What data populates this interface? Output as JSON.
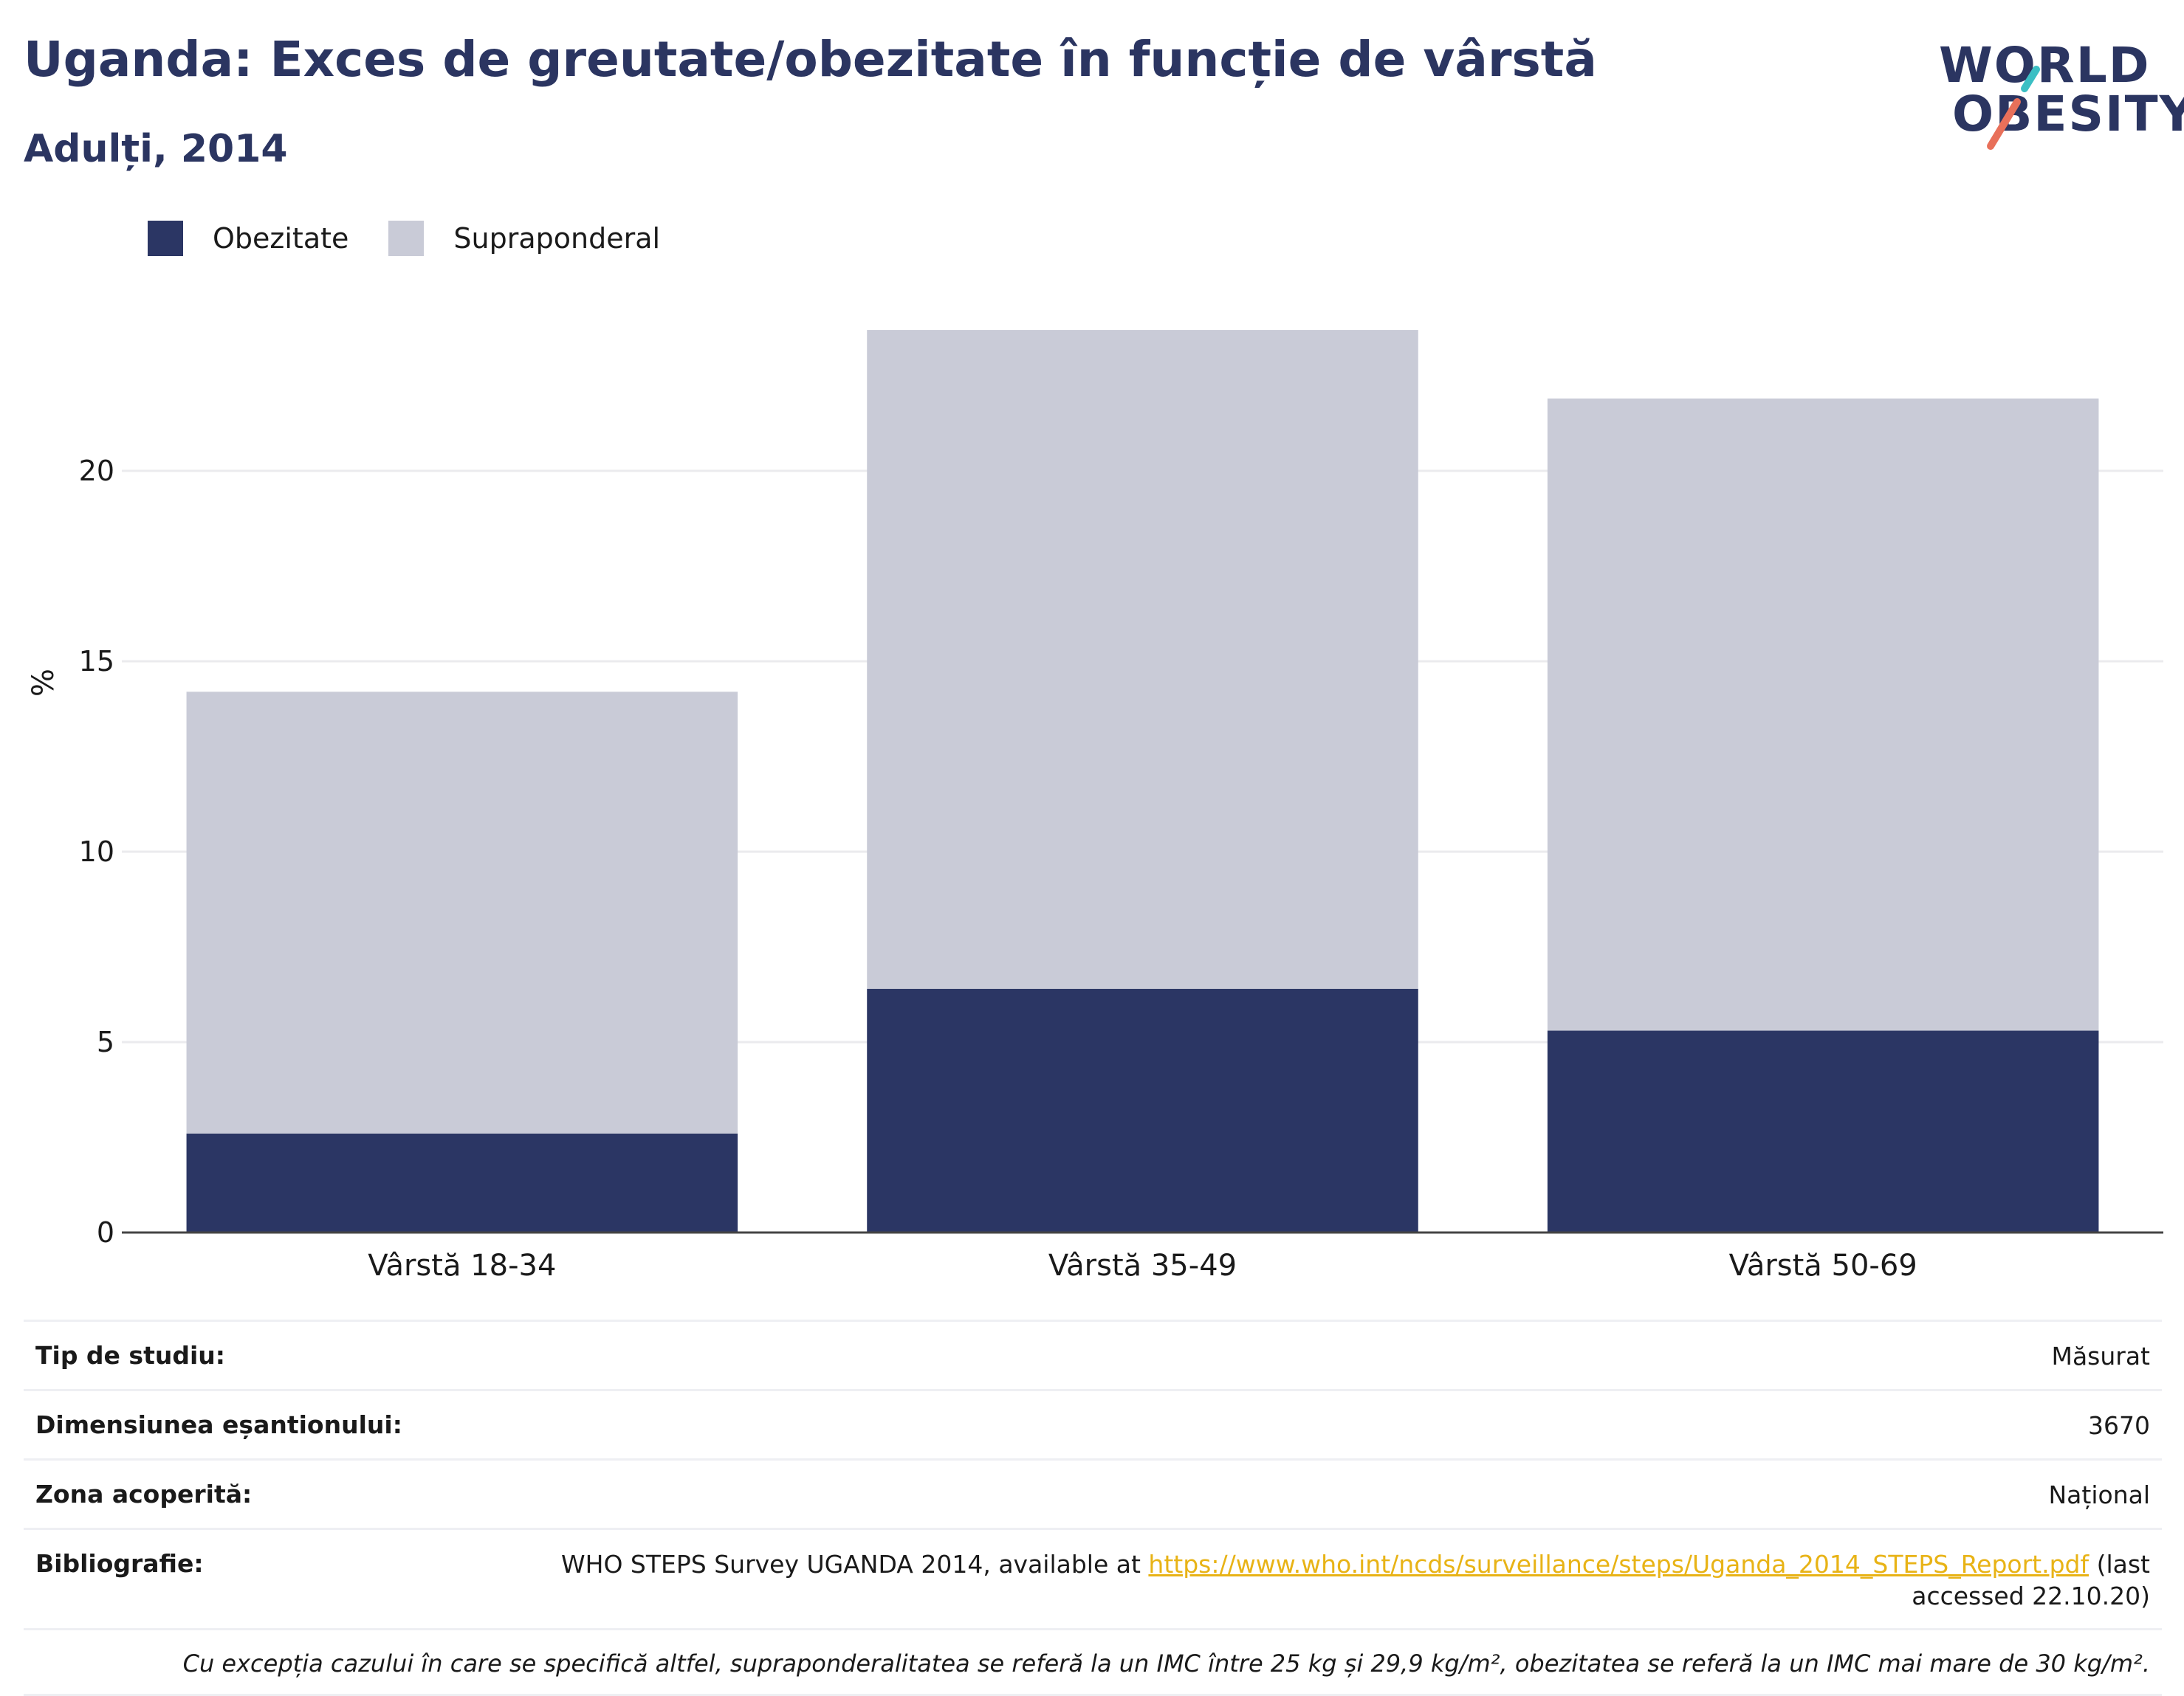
{
  "header": {
    "title": "Uganda: Exces de greutate/obezitate în funcție de vârstă",
    "subtitle": "Adulți, 2014"
  },
  "logo": {
    "line1": "WORLD",
    "line2": "OBESITY",
    "colors": {
      "text": "#2b3561",
      "teal": "#3bbfc4",
      "coral": "#e8705a"
    }
  },
  "legend": {
    "items": [
      {
        "label": "Obezitate",
        "color": "#2b3664"
      },
      {
        "label": "Supraponderal",
        "color": "#c9cbd7"
      }
    ]
  },
  "chart_data": {
    "type": "bar",
    "stacked": true,
    "categories": [
      "Vârstă 18-34",
      "Vârstă 35-49",
      "Vârstă 50-69"
    ],
    "series": [
      {
        "name": "Obezitate",
        "values": [
          2.6,
          6.4,
          5.3
        ],
        "color": "#2b3664"
      },
      {
        "name": "Supraponderal",
        "values": [
          11.6,
          17.3,
          16.6
        ],
        "color": "#c9cbd7"
      }
    ],
    "ylabel": "%",
    "ylim": [
      0,
      25
    ],
    "yticks": [
      0,
      5,
      10,
      15,
      20
    ],
    "grid": true,
    "legend_position": "top-left"
  },
  "info": {
    "study_type": {
      "label": "Tip de studiu:",
      "value": "Măsurat"
    },
    "sample_size": {
      "label": "Dimensiunea eșantionului:",
      "value": "3670"
    },
    "coverage": {
      "label": "Zona acoperită:",
      "value": "Național"
    },
    "bibliography": {
      "label": "Bibliografie:",
      "prefix": "WHO STEPS Survey UGANDA 2014, available at ",
      "link": "https://www.who.int/ncds/surveillance/steps/Uganda_2014_STEPS_Report.pdf",
      "suffix": " (last accessed 22.10.20)"
    },
    "note": "Cu excepția cazului în care se specifică altfel, supraponderalitatea se referă la un IMC între 25 kg și 29,9 kg/m², obezitatea se referă la un IMC mai mare de 30 kg/m²."
  }
}
